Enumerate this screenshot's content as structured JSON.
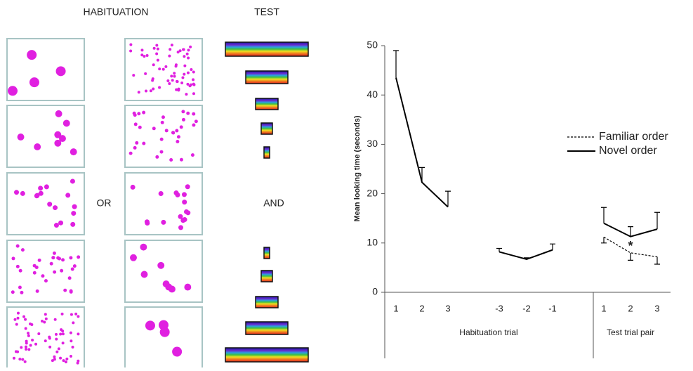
{
  "stimuli": {
    "habituation_title": "HABITUATION",
    "test_title": "TEST",
    "or_label": "OR",
    "and_label": "AND"
  },
  "chart_data": {
    "type": "line",
    "y_label": "Mean looking time (seconds)",
    "categories": [
      "1",
      "2",
      "3",
      "-3",
      "-2",
      "-1",
      "1",
      "2",
      "3"
    ],
    "x_groups": [
      "Habituation trial",
      "Test trial pair"
    ],
    "ylim": [
      0,
      50
    ],
    "yticks": [
      0,
      10,
      20,
      30,
      40,
      50
    ],
    "series": [
      {
        "color": "#000000",
        "dash": false,
        "error_direction": "up",
        "values": [
          43.5,
          22.3,
          17.3,
          null,
          null,
          null,
          null,
          null,
          null
        ],
        "errors": [
          5.5,
          3.0,
          3.2,
          null,
          null,
          null,
          null,
          null,
          null
        ]
      },
      {
        "color": "#000000",
        "dash": false,
        "error_direction": "up",
        "values": [
          null,
          null,
          null,
          8.2,
          6.7,
          8.6,
          null,
          null,
          null
        ],
        "errors": [
          null,
          null,
          null,
          0.7,
          0.3,
          1.2,
          null,
          null,
          null
        ]
      },
      {
        "name": "Familiar order",
        "color": "#000000",
        "dash": true,
        "error_direction": "down",
        "values": [
          null,
          null,
          null,
          null,
          null,
          null,
          11.2,
          8.0,
          7.2
        ],
        "errors": [
          null,
          null,
          null,
          null,
          null,
          null,
          1.2,
          1.5,
          1.5
        ]
      },
      {
        "name": "Novel order",
        "color": "#000000",
        "dash": false,
        "error_direction": "up",
        "values": [
          null,
          null,
          null,
          null,
          null,
          null,
          14.0,
          11.3,
          12.8
        ],
        "errors": [
          null,
          null,
          null,
          null,
          null,
          null,
          3.2,
          2.0,
          3.4
        ]
      }
    ],
    "annotations": [
      {
        "text": "*",
        "category": 7,
        "y": 9.8
      }
    ]
  }
}
